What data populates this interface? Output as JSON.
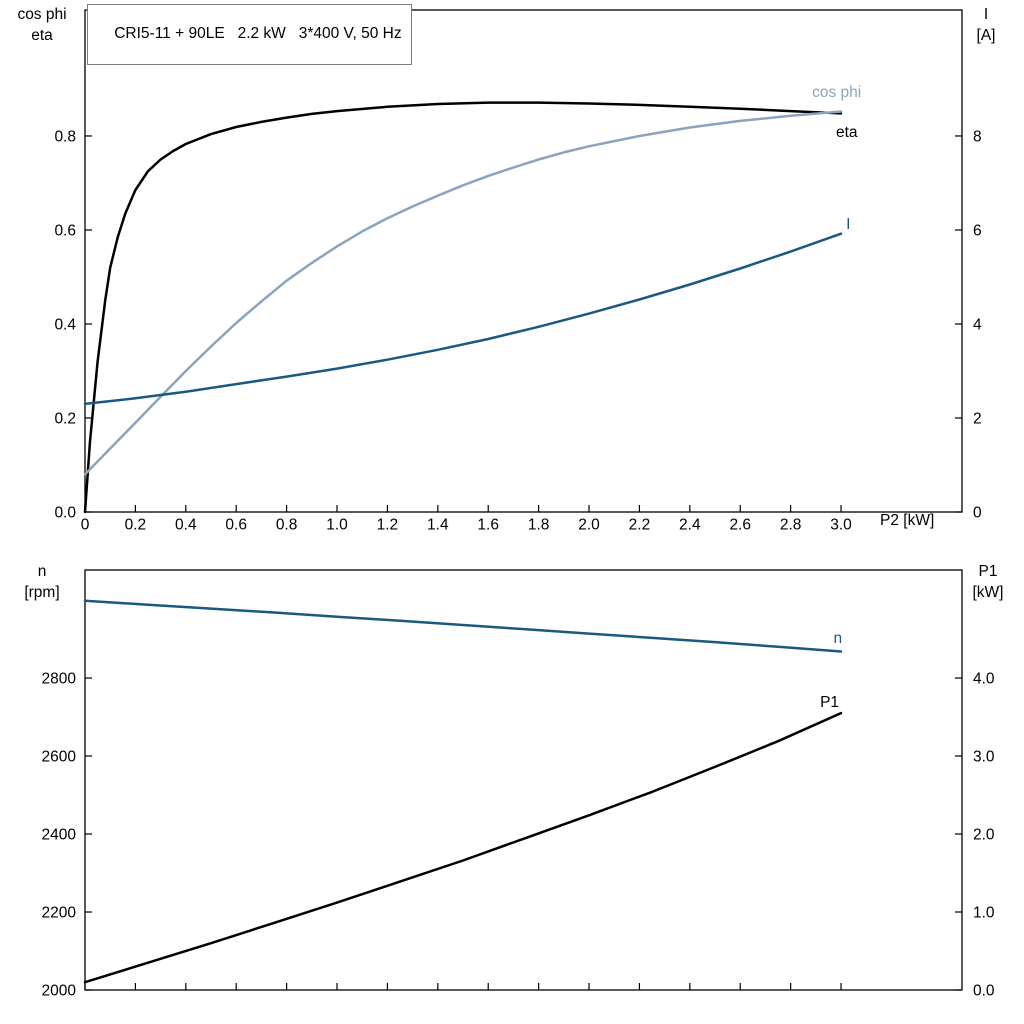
{
  "chart_data": [
    {
      "id": "top",
      "type": "line",
      "title": "CRI5-11 + 90LE   2.2 kW   3*400 V, 50 Hz",
      "xlabel": "P2 [kW]",
      "ylabel_left": [
        "cos phi",
        "eta"
      ],
      "ylabel_right": [
        "I",
        "[A]"
      ],
      "xlim": [
        0,
        3.48
      ],
      "xticks": [
        0,
        0.2,
        0.4,
        0.6,
        0.8,
        1.0,
        1.2,
        1.4,
        1.6,
        1.8,
        2.0,
        2.2,
        2.4,
        2.6,
        2.8,
        3.0
      ],
      "xtick_labels": [
        "0",
        "0.2",
        "0.4",
        "0.6",
        "0.8",
        "1.0",
        "1.2",
        "1.4",
        "1.6",
        "1.8",
        "2.0",
        "2.2",
        "2.4",
        "2.6",
        "2.8",
        "3.0"
      ],
      "ylim_left": [
        0,
        1.068
      ],
      "yticks_left": [
        0,
        0.2,
        0.4,
        0.6,
        0.8
      ],
      "ytick_labels_left": [
        "0.0",
        "0.2",
        "0.4",
        "0.6",
        "0.8"
      ],
      "ylim_right": [
        0,
        10.68
      ],
      "yticks_right": [
        0,
        2,
        4,
        6,
        8
      ],
      "ytick_labels_right": [
        "0",
        "2",
        "4",
        "6",
        "8"
      ],
      "grid": false,
      "series": [
        {
          "name": "eta",
          "axis": "left",
          "color": "#000000",
          "width": 2.5,
          "label": {
            "text": "eta",
            "x": 2.98,
            "y": 0.798
          },
          "x": [
            0,
            0.02,
            0.05,
            0.08,
            0.1,
            0.13,
            0.16,
            0.2,
            0.25,
            0.3,
            0.35,
            0.4,
            0.5,
            0.6,
            0.7,
            0.8,
            0.9,
            1.0,
            1.2,
            1.4,
            1.6,
            1.8,
            2.0,
            2.2,
            2.4,
            2.6,
            2.8,
            3.0
          ],
          "y": [
            0,
            0.15,
            0.32,
            0.45,
            0.52,
            0.585,
            0.635,
            0.685,
            0.725,
            0.75,
            0.768,
            0.783,
            0.804,
            0.819,
            0.83,
            0.839,
            0.847,
            0.853,
            0.862,
            0.868,
            0.871,
            0.871,
            0.869,
            0.866,
            0.862,
            0.858,
            0.853,
            0.848
          ]
        },
        {
          "name": "cos-phi",
          "axis": "left",
          "color": "#8aa4bd",
          "width": 2.5,
          "label": {
            "text": "cos phi",
            "x": 2.885,
            "y": 0.883
          },
          "x": [
            0,
            0.1,
            0.2,
            0.3,
            0.4,
            0.5,
            0.6,
            0.7,
            0.8,
            0.9,
            1.0,
            1.1,
            1.2,
            1.3,
            1.4,
            1.5,
            1.6,
            1.7,
            1.8,
            1.9,
            2.0,
            2.2,
            2.4,
            2.6,
            2.8,
            3.0
          ],
          "y": [
            0.08,
            0.135,
            0.19,
            0.245,
            0.3,
            0.352,
            0.402,
            0.448,
            0.492,
            0.53,
            0.565,
            0.597,
            0.625,
            0.65,
            0.673,
            0.695,
            0.715,
            0.733,
            0.75,
            0.765,
            0.778,
            0.8,
            0.818,
            0.832,
            0.843,
            0.852
          ]
        },
        {
          "name": "current",
          "axis": "right",
          "color": "#1a5a80",
          "width": 2.5,
          "label": {
            "text": "I",
            "x": 3.02,
            "y": 6.02
          },
          "x": [
            0,
            0.2,
            0.4,
            0.6,
            0.8,
            1.0,
            1.2,
            1.4,
            1.6,
            1.8,
            2.0,
            2.2,
            2.4,
            2.6,
            2.8,
            3.0
          ],
          "y": [
            2.3,
            2.42,
            2.56,
            2.72,
            2.88,
            3.05,
            3.24,
            3.45,
            3.68,
            3.94,
            4.22,
            4.52,
            4.84,
            5.18,
            5.54,
            5.92
          ]
        }
      ]
    },
    {
      "id": "bottom",
      "type": "line",
      "title": "",
      "xlabel": "",
      "ylabel_left": [
        "n",
        "[rpm]"
      ],
      "ylabel_right": [
        "P1",
        "[kW]"
      ],
      "xlim": [
        0,
        3.48
      ],
      "xticks": [
        0,
        0.2,
        0.4,
        0.6,
        0.8,
        1.0,
        1.2,
        1.4,
        1.6,
        1.8,
        2.0,
        2.2,
        2.4,
        2.6,
        2.8,
        3.0
      ],
      "ylim_left": [
        2000,
        3077
      ],
      "yticks_left": [
        2000,
        2200,
        2400,
        2600,
        2800
      ],
      "ytick_labels_left": [
        "2000",
        "2200",
        "2400",
        "2600",
        "2800"
      ],
      "ylim_right": [
        0,
        5.385
      ],
      "yticks_right": [
        0,
        1,
        2,
        3,
        4
      ],
      "ytick_labels_right": [
        "0.0",
        "1.0",
        "2.0",
        "3.0",
        "4.0"
      ],
      "grid": false,
      "series": [
        {
          "name": "speed",
          "axis": "left",
          "color": "#1a5a80",
          "width": 2.5,
          "label": {
            "text": "n",
            "x": 2.97,
            "y": 2890
          },
          "x": [
            0,
            0.25,
            0.5,
            0.75,
            1.0,
            1.25,
            1.5,
            1.75,
            2.0,
            2.25,
            2.5,
            2.75,
            3.0
          ],
          "y": [
            2998,
            2988,
            2978,
            2968,
            2957,
            2947,
            2936,
            2925,
            2914,
            2903,
            2892,
            2880,
            2868
          ]
        },
        {
          "name": "p1",
          "axis": "right",
          "color": "#000000",
          "width": 2.5,
          "label": {
            "text": "P1",
            "x": 2.917,
            "y": 3.63
          },
          "x": [
            0,
            0.25,
            0.5,
            0.75,
            1.0,
            1.25,
            1.5,
            1.75,
            2.0,
            2.25,
            2.5,
            2.75,
            3.0
          ],
          "y": [
            0.1,
            0.35,
            0.6,
            0.86,
            1.12,
            1.39,
            1.66,
            1.95,
            2.24,
            2.54,
            2.86,
            3.19,
            3.55
          ]
        }
      ]
    }
  ],
  "frame_color": "#000000"
}
